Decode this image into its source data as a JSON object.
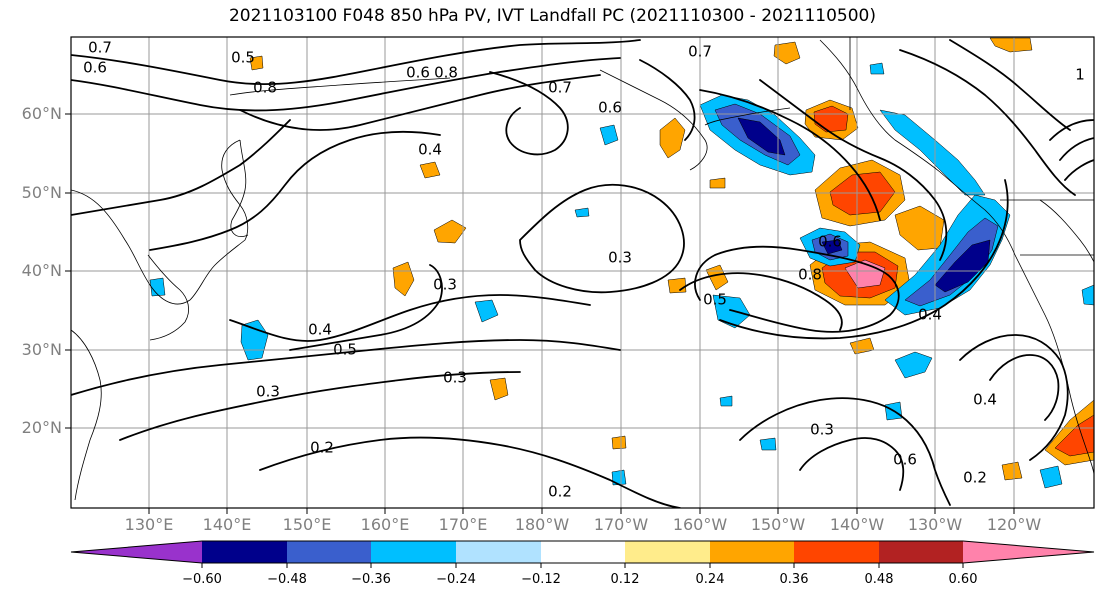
{
  "title": "2021103100 F048 850 hPa PV, IVT Landfall PC (2021110300 - 2021110500)",
  "map": {
    "lat_labels": [
      "60°N",
      "50°N",
      "40°N",
      "30°N",
      "20°N"
    ],
    "lon_labels": [
      "130°E",
      "140°E",
      "150°E",
      "160°E",
      "170°E",
      "180°W",
      "170°W",
      "160°W",
      "150°W",
      "140°W",
      "130°W",
      "120°W"
    ],
    "contour_labels": [
      "0.7",
      "0.6",
      "0.5",
      "0.4",
      "0.3",
      "0.2",
      "0.8",
      "0.5",
      "0.3",
      "0.2",
      "0.4",
      "0.3",
      "0.7",
      "0.6",
      "0.5",
      "0.8",
      "0.6",
      "0.3",
      "0.4",
      "0.6",
      "0.2",
      "0.4",
      "0.3",
      "0.7",
      "0.8",
      "0.6",
      "1"
    ],
    "colors": {
      "contour": "#000000",
      "grid": "#999999",
      "axis_labels": "#808080"
    }
  },
  "colorbar": {
    "tick_labels": [
      "−0.60",
      "−0.48",
      "−0.36",
      "−0.24",
      "−0.12",
      "0.12",
      "0.24",
      "0.36",
      "0.48",
      "0.60"
    ],
    "colors": [
      "#9932cc",
      "#00008b",
      "#3a5fcd",
      "#00bfff",
      "#b0e2ff",
      "#ffffff",
      "#ffec8b",
      "#ffa500",
      "#ff4500",
      "#b22222",
      "#ff82ab"
    ]
  }
}
